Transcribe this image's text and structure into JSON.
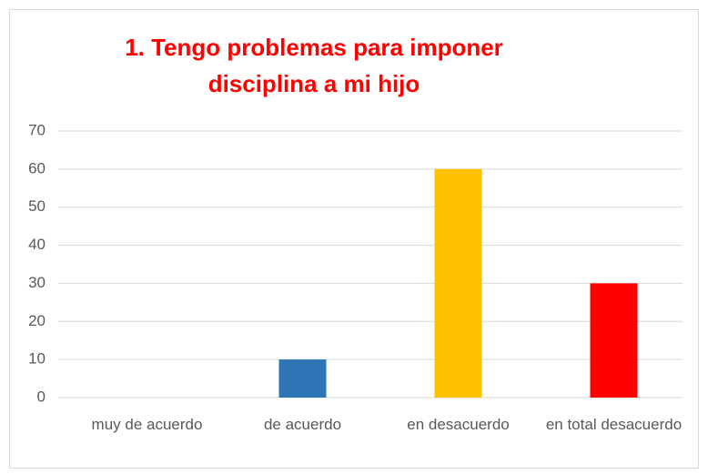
{
  "chart_data": {
    "type": "bar",
    "title": "1. Tengo problemas para imponer disciplina a mi hijo",
    "categories": [
      "muy de acuerdo",
      "de acuerdo",
      "en desacuerdo",
      "en total desacuerdo"
    ],
    "values": [
      0,
      10,
      60,
      30
    ],
    "colors": [
      "#4472c4",
      "#2e75b6",
      "#ffc000",
      "#ff0000"
    ],
    "ylim": [
      0,
      70
    ],
    "yticks": [
      0,
      10,
      20,
      30,
      40,
      50,
      60,
      70
    ],
    "grid": true
  }
}
